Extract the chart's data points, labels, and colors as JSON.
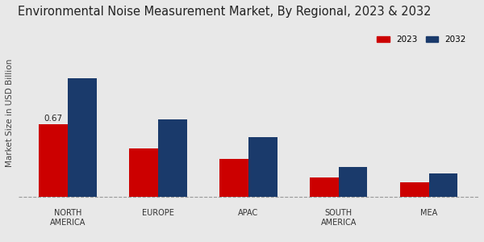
{
  "title": "Environmental Noise Measurement Market, By Regional, 2023 & 2032",
  "ylabel": "Market Size in USD Billion",
  "categories": [
    "NORTH\nAMERICA",
    "EUROPE",
    "APAC",
    "SOUTH\nAMERICA",
    "MEA"
  ],
  "values_2023": [
    0.67,
    0.45,
    0.35,
    0.18,
    0.14
  ],
  "values_2032": [
    1.1,
    0.72,
    0.55,
    0.28,
    0.22
  ],
  "color_2023": "#cc0000",
  "color_2032": "#1a3a6b",
  "annotation_value": "0.67",
  "annotation_bar": 0,
  "legend_labels": [
    "2023",
    "2032"
  ],
  "background_color": "#e8e8e8",
  "bar_width": 0.32,
  "title_fontsize": 10.5,
  "label_fontsize": 7.5,
  "tick_fontsize": 7,
  "bottom_strip_color": "#cc0000",
  "annotation_color": "#222222"
}
